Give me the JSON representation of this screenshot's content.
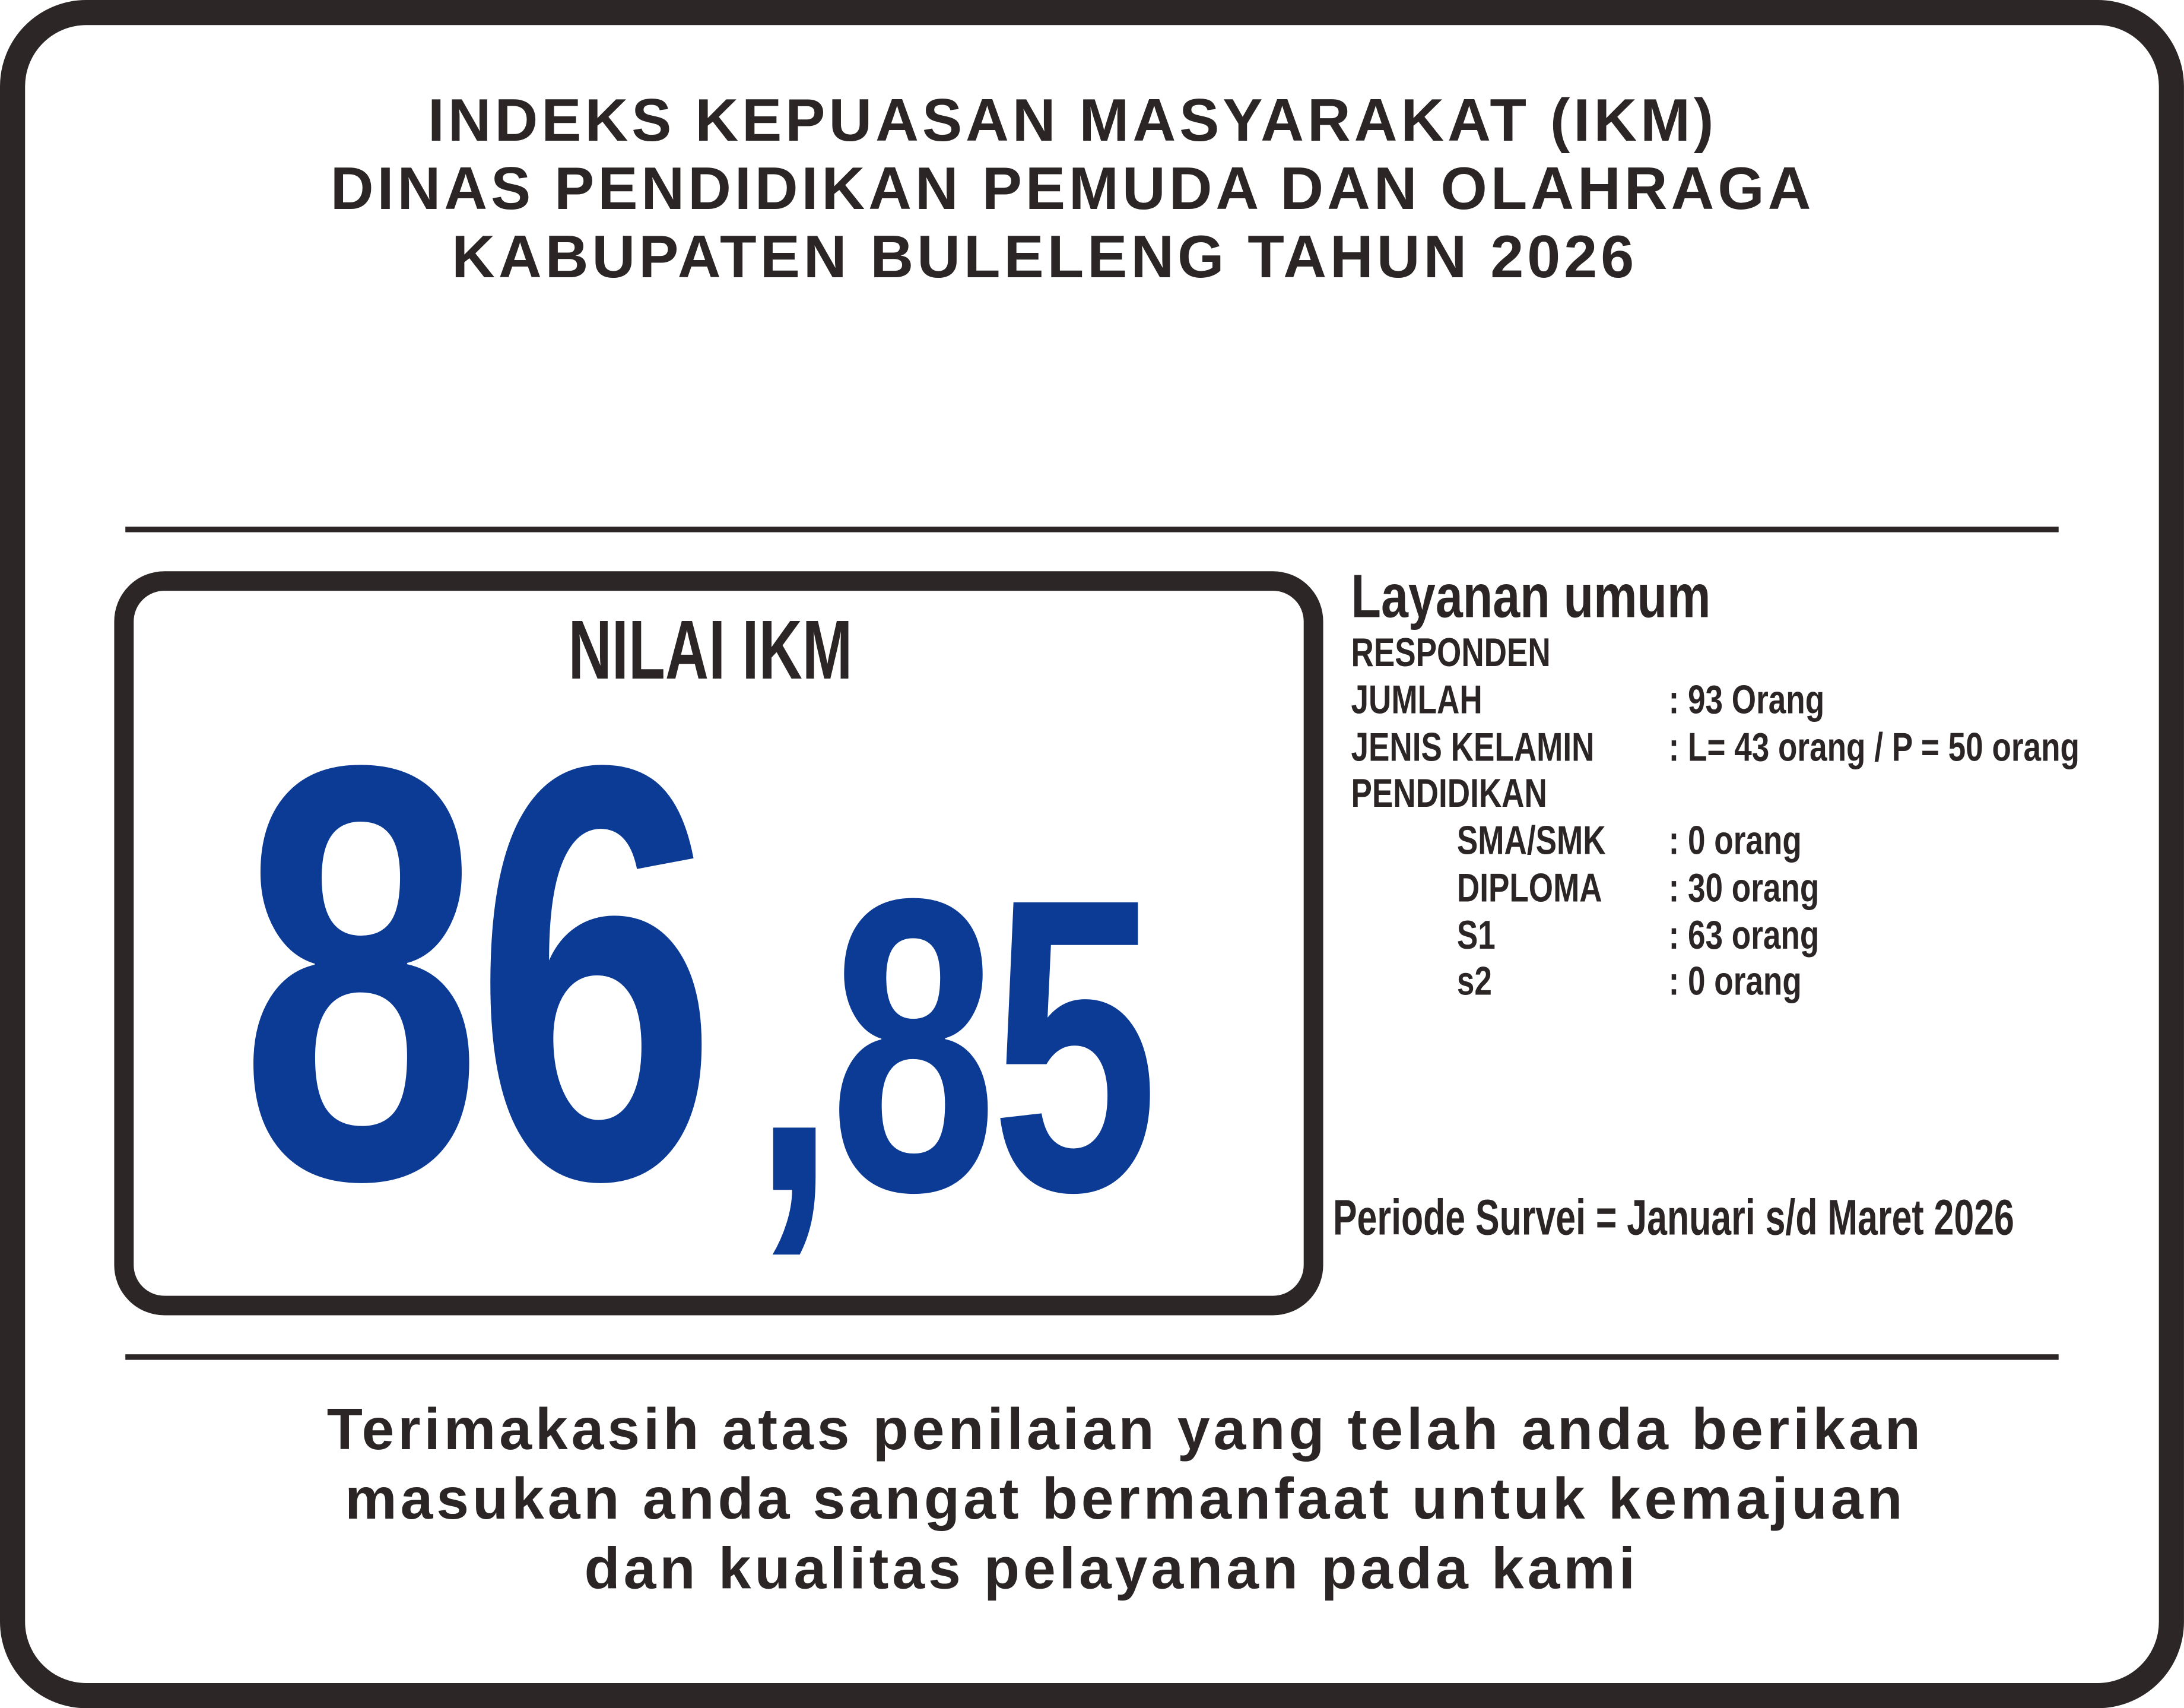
{
  "header": {
    "lines": [
      "INDEKS KEPUASAN MASYARAKAT (IKM)",
      "DINAS PENDIDIKAN PEMUDA DAN OLAHRAGA",
      "KABUPATEN BULELENG TAHUN 2026"
    ]
  },
  "score": {
    "label": "NILAI IKM",
    "integer": "86",
    "decimal": ",85",
    "color": "#0b3b94"
  },
  "info": {
    "service": "Layanan umum",
    "respondents_heading": "RESPONDEN",
    "rows": [
      {
        "label": "JUMLAH",
        "value": ": 93 Orang"
      },
      {
        "label": "JENIS KELAMIN",
        "value": ": L= 43 orang / P = 50 orang"
      }
    ],
    "education_heading": "PENDIDIKAN",
    "education": [
      {
        "label": "SMA/SMK",
        "value": ": 0 orang"
      },
      {
        "label": "DIPLOMA",
        "value": ": 30 orang"
      },
      {
        "label": "S1",
        "value": ": 63 orang"
      },
      {
        "label": "s2",
        "value": ": 0 orang"
      }
    ],
    "period": "Periode Survei = Januari s/d Maret 2026"
  },
  "footer": {
    "lines": [
      "Terimakasih atas penilaian yang telah anda berikan",
      "masukan anda sangat bermanfaat untuk kemajuan",
      "dan kualitas pelayanan pada kami"
    ]
  }
}
